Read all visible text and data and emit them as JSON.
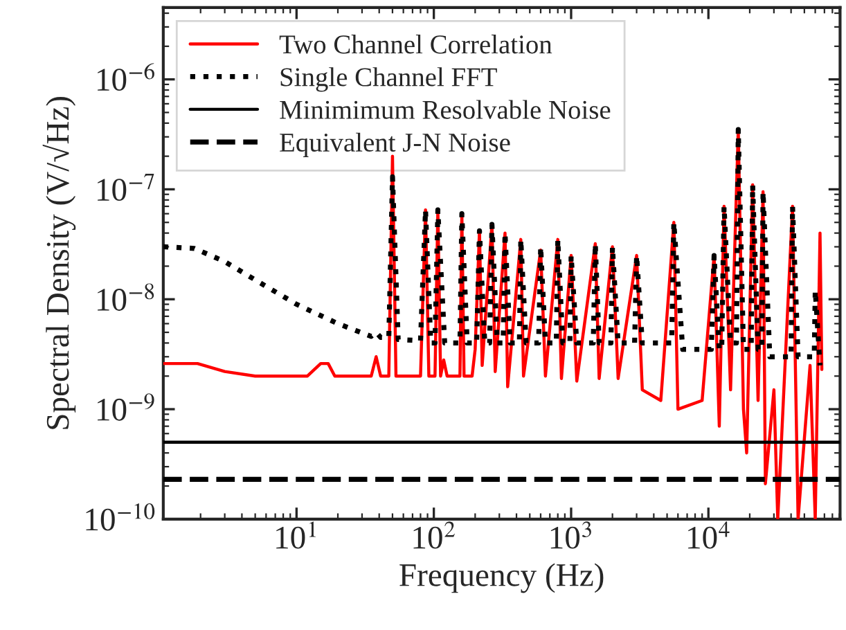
{
  "chart_data": {
    "type": "line",
    "xlabel": "Frequency (Hz)",
    "ylabel": "Spectral Density (V/√Hz)",
    "log": "xy",
    "xlim": [
      1.07,
      91000
    ],
    "ylim": [
      1e-10,
      4.5e-06
    ],
    "xticks": [
      {
        "value": 10,
        "label": "10$^{1}$"
      },
      {
        "value": 100,
        "label": "10$^{2}$"
      },
      {
        "value": 1000,
        "label": "10$^{3}$"
      },
      {
        "value": 10000,
        "label": "10$^{4}$"
      }
    ],
    "yticks": [
      {
        "value": 1e-10,
        "label": "10$^{−10}$"
      },
      {
        "value": 1e-09,
        "label": "10$^{−9}$"
      },
      {
        "value": 1e-08,
        "label": "10$^{−8}$"
      },
      {
        "value": 1e-07,
        "label": "10$^{−7}$"
      },
      {
        "value": 1e-06,
        "label": "10$^{−6}$"
      }
    ],
    "grid": false,
    "legend": "top left",
    "marker": "none",
    "series": [
      {
        "name": "Two Channel Correlation",
        "color": "#ff0000",
        "line_style": "solid",
        "x": [
          1.07,
          1.9,
          3,
          5,
          12,
          15,
          17,
          19,
          35,
          38,
          41,
          47,
          50,
          53,
          80,
          87,
          92,
          102,
          107,
          112,
          118,
          125,
          155,
          160,
          166,
          190,
          200,
          215,
          225,
          265,
          280,
          330,
          345,
          430,
          450,
          600,
          650,
          800,
          850,
          1000,
          1100,
          1500,
          1600,
          2000,
          2200,
          3000,
          3300,
          4500,
          5600,
          6000,
          9000,
          11000,
          12000,
          13000,
          14500,
          16500,
          18000,
          19000,
          21000,
          23000,
          25000,
          26000,
          30000,
          32000,
          41000,
          45000,
          55000,
          60000,
          65000,
          67000
        ],
        "values": [
          2.6e-09,
          2.6e-09,
          2.2e-09,
          2e-09,
          2e-09,
          2.6e-09,
          2.6e-09,
          2e-09,
          2e-09,
          3e-09,
          2e-09,
          2e-09,
          2e-07,
          2e-09,
          2e-09,
          6.5e-08,
          2e-09,
          2e-09,
          6.5e-08,
          2e-09,
          2.8e-09,
          2e-09,
          2e-09,
          6e-08,
          2e-09,
          2e-09,
          3.5e-09,
          4.2e-08,
          2.5e-09,
          4.8e-08,
          2.2e-09,
          4e-08,
          1.6e-09,
          3.5e-08,
          2e-09,
          2.8e-08,
          2e-09,
          3.5e-08,
          1.9e-09,
          2.5e-08,
          1.8e-09,
          3.2e-08,
          1.9e-09,
          3e-08,
          1.9e-09,
          2.5e-08,
          1.5e-09,
          1.2e-09,
          5e-08,
          1e-09,
          1.2e-09,
          2.5e-08,
          7e-10,
          7e-08,
          1.5e-09,
          3.5e-07,
          1e-09,
          4e-10,
          1.1e-07,
          1.2e-09,
          9.5e-08,
          2.1e-10,
          1.5e-09,
          1e-10,
          7e-08,
          1e-10,
          2.5e-09,
          1e-10,
          4e-08,
          2.3e-09
        ]
      },
      {
        "name": "Single Channel FFT",
        "color": "#000000",
        "line_style": "dotted",
        "x": [
          1.07,
          1.8,
          3,
          5,
          10,
          20,
          35,
          38,
          41,
          47,
          50,
          55,
          80,
          87,
          95,
          102,
          107,
          120,
          155,
          160,
          175,
          205,
          215,
          235,
          255,
          265,
          290,
          320,
          330,
          360,
          420,
          430,
          470,
          580,
          600,
          650,
          780,
          800,
          870,
          980,
          1000,
          1100,
          1450,
          1500,
          1600,
          1950,
          2000,
          2200,
          2900,
          3000,
          3300,
          5400,
          5600,
          6500,
          10500,
          11000,
          12000,
          12500,
          13000,
          14500,
          16000,
          16500,
          18000,
          20500,
          21000,
          23000,
          24500,
          25000,
          28000,
          40000,
          41000,
          45000,
          59000,
          60000,
          65000
        ],
        "values": [
          3e-08,
          2.9e-08,
          2.2e-08,
          1.5e-08,
          9e-09,
          6e-09,
          4.6e-09,
          5e-09,
          4.5e-09,
          4.5e-09,
          1.3e-07,
          4.3e-09,
          4.2e-09,
          6.5e-08,
          4e-09,
          4e-09,
          6.5e-08,
          4e-09,
          4e-09,
          6e-08,
          4e-09,
          4e-09,
          4.2e-08,
          4e-09,
          4e-09,
          4.8e-08,
          4e-09,
          4e-09,
          4e-08,
          4e-09,
          4e-09,
          3.5e-08,
          4e-09,
          4e-09,
          3e-08,
          4e-09,
          4e-09,
          3.5e-08,
          4e-09,
          4e-09,
          2.5e-08,
          4e-09,
          4e-09,
          3.2e-08,
          4e-09,
          4e-09,
          3e-08,
          4e-09,
          4e-09,
          2.5e-08,
          4e-09,
          4e-09,
          5e-08,
          3.5e-09,
          3.5e-09,
          2.5e-08,
          3.5e-09,
          3.5e-09,
          7e-08,
          4e-09,
          4e-09,
          3.5e-07,
          3.5e-09,
          3.5e-09,
          1.1e-07,
          3.5e-09,
          3.5e-09,
          9.5e-08,
          3e-09,
          3e-09,
          7e-08,
          3e-09,
          3e-09,
          1.2e-08,
          2.5e-09
        ]
      },
      {
        "name": "Minimimum Resolvable Noise",
        "color": "#000000",
        "line_style": "solid",
        "x": [
          1.07,
          91000
        ],
        "values": [
          5e-10,
          5e-10
        ]
      },
      {
        "name": "Equivalent J-N Noise",
        "color": "#000000",
        "line_style": "dashed",
        "x": [
          1.07,
          91000
        ],
        "values": [
          2.3e-10,
          2.3e-10
        ]
      }
    ]
  }
}
